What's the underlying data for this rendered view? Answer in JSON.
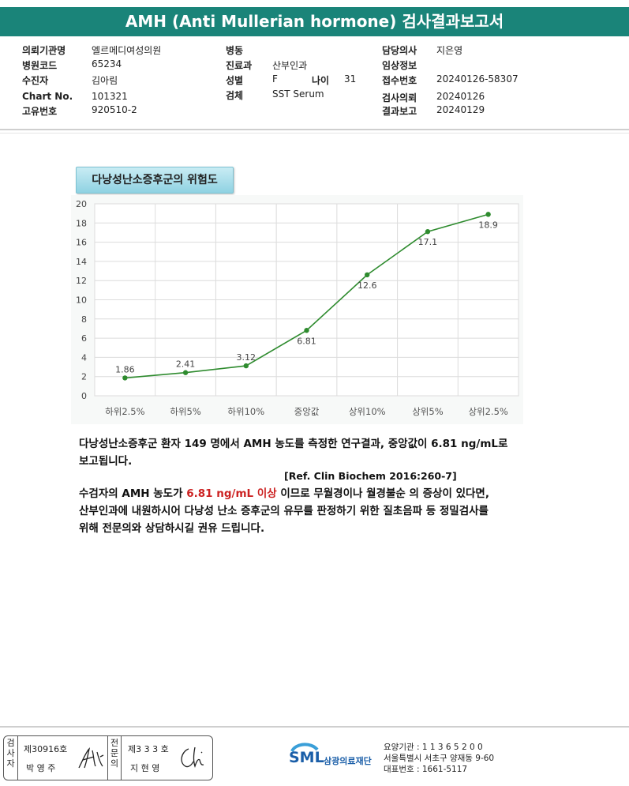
{
  "title": "AMH (Anti Mullerian hormone) 검사결과보고서",
  "info": {
    "institution_label": "의뢰기관명",
    "institution_value": "엘르메디여성의원",
    "hospital_code_label": "병원코드",
    "hospital_code_value": "65234",
    "patient_label": "수진자",
    "patient_value": "김아림",
    "chart_no_label": "Chart No.",
    "chart_no_value": "101321",
    "unique_no_label": "고유번호",
    "unique_no_value": "920510-2",
    "ward_label": "병동",
    "ward_value": "",
    "department_label": "진료과",
    "department_value": "산부인과",
    "sex_label": "성별",
    "sex_value": "F",
    "age_label": "나이",
    "age_value": "31",
    "specimen_label": "검체",
    "specimen_value": "SST Serum",
    "doctor_label": "담당의사",
    "doctor_value": "지은영",
    "clinical_label": "임상정보",
    "clinical_value": "",
    "receipt_label": "접수번호",
    "receipt_value": "20240126-58307",
    "request_label": "검사의뢰",
    "request_value": "20240126",
    "report_label": "결과보고",
    "report_value": "20240129"
  },
  "chart_tag": "다낭성난소증후군의 위험도",
  "chart_data": {
    "type": "line",
    "categories": [
      "하위2.5%",
      "하위5%",
      "하위10%",
      "중앙값",
      "상위10%",
      "상위5%",
      "상위2.5%"
    ],
    "values": [
      1.86,
      2.41,
      3.12,
      6.81,
      12.6,
      17.1,
      18.9
    ],
    "value_labels": [
      "1.86",
      "2.41",
      "3.12",
      "6.81",
      "12.6",
      "17.1",
      "18.9"
    ],
    "ylim": [
      0,
      20
    ],
    "yticks": [
      0,
      2,
      4,
      6,
      8,
      10,
      12,
      14,
      16,
      18,
      20
    ],
    "grid": true,
    "line_color": "#2e8b2e"
  },
  "text": {
    "p1_line1": "다낭성난소증후군 환자 149 명에서 AMH 농도를 측정한 연구결과, 중앙값이 6.81 ng/mL로",
    "p1_line2": "보고됩니다.",
    "reference": "[Ref. Clin Biochem 2016:260-7]",
    "p2_pre": "수검자의 AMH 농도가 ",
    "p2_highlight": "6.81 ng/mL 이상",
    "p2_post": " 이므로 무월경이나 월경불순 의 증상이 있다면,",
    "p2_line2": "산부인과에 내원하시어 다낭성 난소 증후군의 유무를 판정하기 위한 질초음파 등 정밀검사를",
    "p2_line3": "위해 전문의와 상담하시길 권유 드립니다.",
    "highlight_color": "#cc2222"
  },
  "footer": {
    "tester_col": "검사자",
    "tester_no": "제30916호",
    "tester_name": "박 영 주",
    "specialist_col": "전문의",
    "specialist_no": "제3 3 3 호",
    "specialist_name": "지 현 영",
    "logo_text": "SML",
    "lab_name": "삼광의료재단",
    "lab_code": "요양기관 : 1 1 3 6 5 2 0 0",
    "lab_address": "서울특별시 서초구 양재동 9-60",
    "lab_phone": "대표번호 : 1661-5117"
  }
}
